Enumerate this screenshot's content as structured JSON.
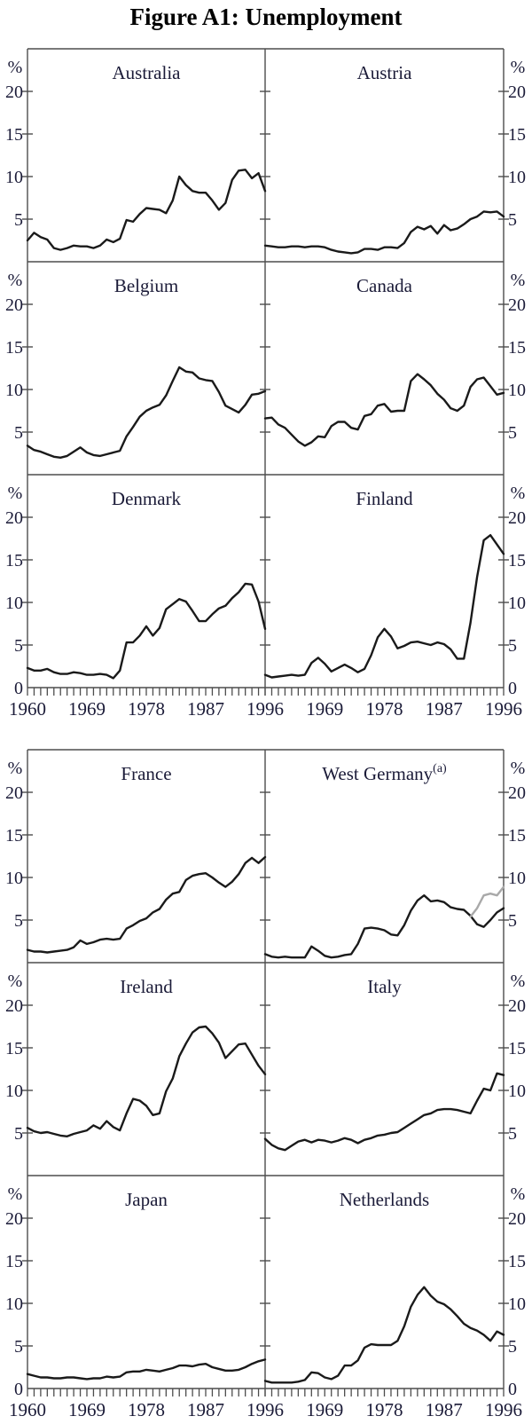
{
  "title": "Figure A1: Unemployment",
  "chart_data": {
    "type": "line",
    "title": "Figure A1: Unemployment",
    "ylabel": "%",
    "ylim": [
      0,
      25
    ],
    "grid": false,
    "years": [
      1960,
      1961,
      1962,
      1963,
      1964,
      1965,
      1966,
      1967,
      1968,
      1969,
      1970,
      1971,
      1972,
      1973,
      1974,
      1975,
      1976,
      1977,
      1978,
      1979,
      1980,
      1981,
      1982,
      1983,
      1984,
      1985,
      1986,
      1987,
      1988,
      1989,
      1990,
      1991,
      1992,
      1993,
      1994,
      1995,
      1996
    ],
    "axes": {
      "percent": "%",
      "ytick_values": [
        5,
        10,
        15,
        20
      ],
      "zero": "0",
      "xtick_years": [
        1960,
        1969,
        1978,
        1987,
        1996
      ]
    },
    "line_color": "#1a1a1a",
    "secondary_line_color": "#a9a9a9",
    "panels": [
      {
        "title": "Australia",
        "series": [
          {
            "name": "unemployment-rate",
            "color": "#1a1a1a",
            "values": [
              2.5,
              3.4,
              2.9,
              2.6,
              1.6,
              1.4,
              1.6,
              1.9,
              1.8,
              1.8,
              1.6,
              1.9,
              2.6,
              2.3,
              2.7,
              4.9,
              4.7,
              5.6,
              6.3,
              6.2,
              6.1,
              5.7,
              7.2,
              10.0,
              9.0,
              8.3,
              8.1,
              8.1,
              7.2,
              6.1,
              6.9,
              9.6,
              10.7,
              10.8,
              9.8,
              10.4,
              8.3
            ]
          }
        ]
      },
      {
        "title": "Austria",
        "series": [
          {
            "name": "unemployment-rate",
            "color": "#1a1a1a",
            "values": [
              1.9,
              1.8,
              1.7,
              1.7,
              1.8,
              1.8,
              1.7,
              1.8,
              1.8,
              1.7,
              1.4,
              1.2,
              1.1,
              1.0,
              1.1,
              1.5,
              1.5,
              1.4,
              1.7,
              1.7,
              1.6,
              2.2,
              3.5,
              4.1,
              3.8,
              4.2,
              3.3,
              4.3,
              3.7,
              3.9,
              4.4,
              5.0,
              5.3,
              5.9,
              5.8,
              5.9,
              5.3
            ]
          }
        ]
      },
      {
        "title": "Belgium",
        "series": [
          {
            "name": "unemployment-rate",
            "color": "#1a1a1a",
            "values": [
              3.4,
              2.9,
              2.7,
              2.4,
              2.1,
              2.0,
              2.2,
              2.7,
              3.2,
              2.6,
              2.3,
              2.2,
              2.4,
              2.6,
              2.8,
              4.5,
              5.6,
              6.8,
              7.5,
              7.9,
              8.2,
              9.3,
              11.0,
              12.6,
              12.1,
              12.0,
              11.3,
              11.1,
              11.0,
              9.7,
              8.1,
              7.7,
              7.3,
              8.2,
              9.4,
              9.5,
              9.8
            ]
          }
        ]
      },
      {
        "title": "Canada",
        "series": [
          {
            "name": "unemployment-rate",
            "color": "#1a1a1a",
            "values": [
              6.6,
              6.7,
              5.9,
              5.5,
              4.7,
              3.9,
              3.4,
              3.8,
              4.5,
              4.4,
              5.7,
              6.2,
              6.2,
              5.5,
              5.3,
              6.9,
              7.1,
              8.1,
              8.3,
              7.4,
              7.5,
              7.5,
              11.0,
              11.8,
              11.2,
              10.5,
              9.5,
              8.8,
              7.8,
              7.5,
              8.1,
              10.3,
              11.2,
              11.4,
              10.4,
              9.4,
              9.6
            ]
          }
        ]
      },
      {
        "title": "Denmark",
        "series": [
          {
            "name": "unemployment-rate",
            "color": "#1a1a1a",
            "values": [
              2.3,
              2.0,
              2.0,
              2.2,
              1.8,
              1.6,
              1.6,
              1.8,
              1.7,
              1.5,
              1.5,
              1.6,
              1.5,
              1.1,
              2.0,
              5.3,
              5.3,
              6.1,
              7.2,
              6.1,
              7.0,
              9.2,
              9.8,
              10.4,
              10.1,
              9.0,
              7.8,
              7.8,
              8.6,
              9.3,
              9.6,
              10.5,
              11.2,
              12.2,
              12.1,
              10.1,
              6.9
            ]
          }
        ]
      },
      {
        "title": "Finland",
        "series": [
          {
            "name": "unemployment-rate",
            "color": "#1a1a1a",
            "values": [
              1.5,
              1.2,
              1.3,
              1.4,
              1.5,
              1.4,
              1.5,
              2.9,
              3.5,
              2.8,
              1.9,
              2.3,
              2.7,
              2.3,
              1.8,
              2.2,
              3.8,
              5.9,
              6.9,
              6.0,
              4.6,
              4.9,
              5.3,
              5.4,
              5.2,
              5.0,
              5.3,
              5.1,
              4.5,
              3.4,
              3.4,
              7.6,
              13.0,
              17.3,
              17.9,
              16.8,
              15.7
            ]
          }
        ]
      },
      {
        "title": "France",
        "series": [
          {
            "name": "unemployment-rate",
            "color": "#1a1a1a",
            "values": [
              1.5,
              1.3,
              1.3,
              1.2,
              1.3,
              1.4,
              1.5,
              1.8,
              2.6,
              2.2,
              2.4,
              2.7,
              2.8,
              2.7,
              2.8,
              4.0,
              4.4,
              4.9,
              5.2,
              5.9,
              6.3,
              7.4,
              8.1,
              8.3,
              9.7,
              10.2,
              10.4,
              10.5,
              10.0,
              9.4,
              8.9,
              9.5,
              10.4,
              11.7,
              12.3,
              11.7,
              12.4
            ]
          }
        ]
      },
      {
        "title": "West Germany",
        "note": "(a)",
        "series": [
          {
            "name": "unemployment-rate-west-germany",
            "color": "#1a1a1a",
            "values": [
              1.0,
              0.7,
              0.6,
              0.7,
              0.6,
              0.6,
              0.6,
              1.9,
              1.4,
              0.8,
              0.6,
              0.7,
              0.9,
              1.0,
              2.2,
              4.0,
              4.1,
              4.0,
              3.8,
              3.3,
              3.2,
              4.4,
              6.1,
              7.3,
              7.9,
              7.2,
              7.3,
              7.1,
              6.5,
              6.3,
              6.2,
              5.5,
              4.5,
              4.2,
              5.0,
              5.9,
              6.4
            ]
          },
          {
            "name": "unemployment-rate-unified-germany",
            "color": "#a9a9a9",
            "values": [
              null,
              null,
              null,
              null,
              null,
              null,
              null,
              null,
              null,
              null,
              null,
              null,
              null,
              null,
              null,
              null,
              null,
              null,
              null,
              null,
              null,
              null,
              null,
              null,
              null,
              null,
              null,
              null,
              null,
              null,
              null,
              5.4,
              6.4,
              7.9,
              8.1,
              7.9,
              8.9
            ]
          }
        ]
      },
      {
        "title": "Ireland",
        "series": [
          {
            "name": "unemployment-rate",
            "color": "#1a1a1a",
            "values": [
              5.6,
              5.2,
              5.0,
              5.1,
              4.9,
              4.7,
              4.6,
              4.9,
              5.1,
              5.3,
              5.9,
              5.5,
              6.4,
              5.7,
              5.3,
              7.3,
              9.0,
              8.8,
              8.2,
              7.1,
              7.3,
              9.9,
              11.4,
              14.0,
              15.5,
              16.8,
              17.4,
              17.5,
              16.7,
              15.6,
              13.8,
              14.6,
              15.4,
              15.5,
              14.2,
              12.9,
              11.9
            ]
          }
        ]
      },
      {
        "title": "Italy",
        "series": [
          {
            "name": "unemployment-rate",
            "color": "#1a1a1a",
            "values": [
              4.3,
              3.6,
              3.2,
              3.0,
              3.5,
              4.0,
              4.2,
              3.9,
              4.2,
              4.1,
              3.9,
              4.1,
              4.4,
              4.2,
              3.8,
              4.2,
              4.4,
              4.7,
              4.8,
              5.0,
              5.1,
              5.6,
              6.1,
              6.6,
              7.1,
              7.3,
              7.7,
              7.8,
              7.8,
              7.7,
              7.5,
              7.3,
              8.8,
              10.2,
              10.0,
              12.0,
              11.8
            ]
          }
        ]
      },
      {
        "title": "Japan",
        "series": [
          {
            "name": "unemployment-rate",
            "color": "#1a1a1a",
            "values": [
              1.7,
              1.5,
              1.3,
              1.3,
              1.2,
              1.2,
              1.3,
              1.3,
              1.2,
              1.1,
              1.2,
              1.2,
              1.4,
              1.3,
              1.4,
              1.9,
              2.0,
              2.0,
              2.2,
              2.1,
              2.0,
              2.2,
              2.4,
              2.7,
              2.7,
              2.6,
              2.8,
              2.9,
              2.5,
              2.3,
              2.1,
              2.1,
              2.2,
              2.5,
              2.9,
              3.2,
              3.4
            ]
          }
        ]
      },
      {
        "title": "Netherlands",
        "series": [
          {
            "name": "unemployment-rate",
            "color": "#1a1a1a",
            "values": [
              0.9,
              0.7,
              0.7,
              0.7,
              0.7,
              0.8,
              1.0,
              1.9,
              1.8,
              1.3,
              1.1,
              1.5,
              2.7,
              2.7,
              3.3,
              4.8,
              5.2,
              5.1,
              5.1,
              5.1,
              5.6,
              7.3,
              9.6,
              11.0,
              11.9,
              10.9,
              10.2,
              9.9,
              9.3,
              8.5,
              7.6,
              7.1,
              6.8,
              6.3,
              5.6,
              6.7,
              6.3
            ]
          }
        ]
      }
    ]
  }
}
